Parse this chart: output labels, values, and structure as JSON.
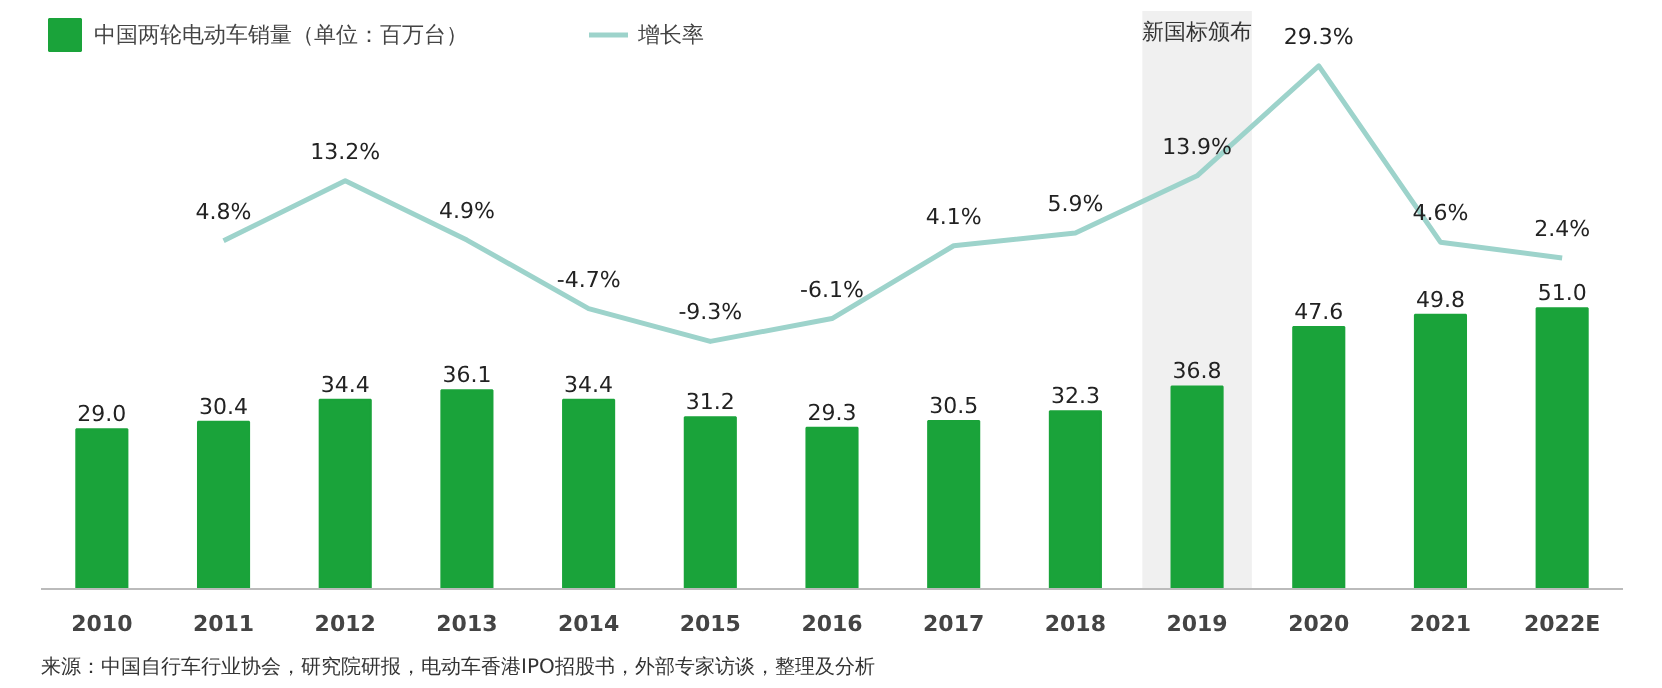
{
  "chart_data": {
    "type": "bar",
    "categories": [
      "2010",
      "2011",
      "2012",
      "2013",
      "2014",
      "2015",
      "2016",
      "2017",
      "2018",
      "2019",
      "2020",
      "2021",
      "2022E"
    ],
    "series": [
      {
        "name": "中国两轮电动车销量（单位：百万台）",
        "color": "#1aa33a",
        "values": [
          29.0,
          30.4,
          34.4,
          36.1,
          34.4,
          31.2,
          29.3,
          30.5,
          32.3,
          36.8,
          47.6,
          49.8,
          51.0
        ],
        "value_labels": [
          "29.0",
          "30.4",
          "34.4",
          "36.1",
          "34.4",
          "31.2",
          "29.3",
          "30.5",
          "32.3",
          "36.8",
          "47.6",
          "49.8",
          "51.0"
        ]
      },
      {
        "name": "增长率",
        "type": "line",
        "axis": "y2",
        "color": "#9dd3cb",
        "values": [
          null,
          4.8,
          13.2,
          4.9,
          -4.7,
          -9.3,
          -6.1,
          4.1,
          5.9,
          13.9,
          29.3,
          4.6,
          2.4
        ],
        "value_labels": [
          null,
          "4.8%",
          "13.2%",
          "4.9%",
          "-4.7%",
          "-9.3%",
          "-6.1%",
          "4.1%",
          "5.9%",
          "13.9%",
          "29.3%",
          "4.6%",
          "2.4%"
        ]
      }
    ],
    "ylim": [
      0,
      105
    ],
    "y2lim": [
      -44,
      37
    ],
    "tick_labels": "x",
    "grid": false,
    "legend": "top left",
    "marker": "none",
    "line_style": "solid",
    "bands": [
      {
        "axis": "x",
        "from": "2019",
        "to": "2019",
        "label": "新国标颁布",
        "color": "#f0f0f0"
      }
    ],
    "annotations": [
      "来源：中国自行车行业协会，研究院研报，电动车香港IPO招股书，外部专家访谈，整理及分析"
    ]
  }
}
